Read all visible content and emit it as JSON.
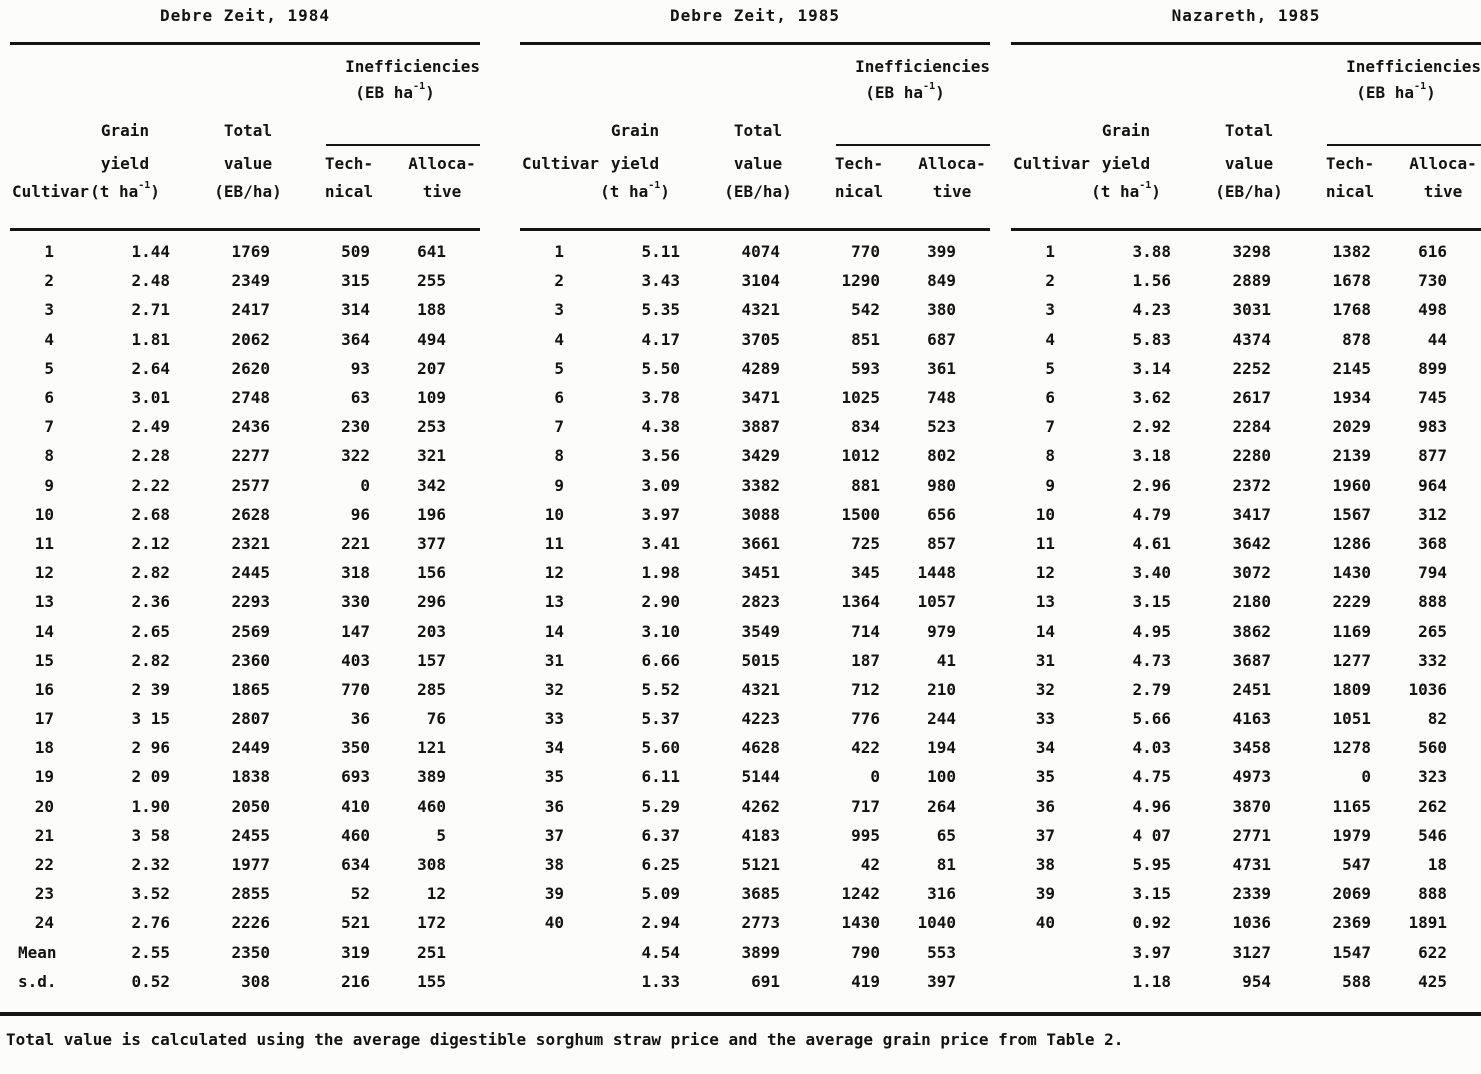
{
  "table": {
    "footnote": "Total value is calculated using the average digestible sorghum straw price and the average grain price from Table 2.",
    "columns": {
      "cultivar": "Cultivar",
      "grain_line1": "Grain",
      "grain_line2": "yield",
      "grain_unit_pre": "(t ha",
      "value_line1": "Total",
      "value_line2": "value",
      "value_unit": "(EB/ha)",
      "ineff_title": "Inefficiencies",
      "ineff_unit_pre": "(EB ha",
      "unit_sup": "-1",
      "unit_close": ")",
      "tech_line1": "Tech-",
      "tech_line2": "nical",
      "alloc_line1": "Alloca-",
      "alloc_line2": "tive"
    },
    "panels": [
      {
        "title": "Debre Zeit, 1984",
        "rows": [
          [
            "1",
            "1.44",
            "1769",
            "509",
            "641"
          ],
          [
            "2",
            "2.48",
            "2349",
            "315",
            "255"
          ],
          [
            "3",
            "2.71",
            "2417",
            "314",
            "188"
          ],
          [
            "4",
            "1.81",
            "2062",
            "364",
            "494"
          ],
          [
            "5",
            "2.64",
            "2620",
            "93",
            "207"
          ],
          [
            "6",
            "3.01",
            "2748",
            "63",
            "109"
          ],
          [
            "7",
            "2.49",
            "2436",
            "230",
            "253"
          ],
          [
            "8",
            "2.28",
            "2277",
            "322",
            "321"
          ],
          [
            "9",
            "2.22",
            "2577",
            "0",
            "342"
          ],
          [
            "10",
            "2.68",
            "2628",
            "96",
            "196"
          ],
          [
            "11",
            "2.12",
            "2321",
            "221",
            "377"
          ],
          [
            "12",
            "2.82",
            "2445",
            "318",
            "156"
          ],
          [
            "13",
            "2.36",
            "2293",
            "330",
            "296"
          ],
          [
            "14",
            "2.65",
            "2569",
            "147",
            "203"
          ],
          [
            "15",
            "2.82",
            "2360",
            "403",
            "157"
          ],
          [
            "16",
            "2 39",
            "1865",
            "770",
            "285"
          ],
          [
            "17",
            "3 15",
            "2807",
            "36",
            "76"
          ],
          [
            "18",
            "2 96",
            "2449",
            "350",
            "121"
          ],
          [
            "19",
            "2 09",
            "1838",
            "693",
            "389"
          ],
          [
            "20",
            "1.90",
            "2050",
            "410",
            "460"
          ],
          [
            "21",
            "3 58",
            "2455",
            "460",
            "5"
          ],
          [
            "22",
            "2.32",
            "1977",
            "634",
            "308"
          ],
          [
            "23",
            "3.52",
            "2855",
            "52",
            "12"
          ],
          [
            "24",
            "2.76",
            "2226",
            "521",
            "172"
          ],
          [
            "Mean",
            "2.55",
            "2350",
            "319",
            "251"
          ],
          [
            "s.d.",
            "0.52",
            "308",
            "216",
            "155"
          ]
        ]
      },
      {
        "title": "Debre Zeit, 1985",
        "rows": [
          [
            "1",
            "5.11",
            "4074",
            "770",
            "399"
          ],
          [
            "2",
            "3.43",
            "3104",
            "1290",
            "849"
          ],
          [
            "3",
            "5.35",
            "4321",
            "542",
            "380"
          ],
          [
            "4",
            "4.17",
            "3705",
            "851",
            "687"
          ],
          [
            "5",
            "5.50",
            "4289",
            "593",
            "361"
          ],
          [
            "6",
            "3.78",
            "3471",
            "1025",
            "748"
          ],
          [
            "7",
            "4.38",
            "3887",
            "834",
            "523"
          ],
          [
            "8",
            "3.56",
            "3429",
            "1012",
            "802"
          ],
          [
            "9",
            "3.09",
            "3382",
            "881",
            "980"
          ],
          [
            "10",
            "3.97",
            "3088",
            "1500",
            "656"
          ],
          [
            "11",
            "3.41",
            "3661",
            "725",
            "857"
          ],
          [
            "12",
            "1.98",
            "3451",
            "345",
            "1448"
          ],
          [
            "13",
            "2.90",
            "2823",
            "1364",
            "1057"
          ],
          [
            "14",
            "3.10",
            "3549",
            "714",
            "979"
          ],
          [
            "31",
            "6.66",
            "5015",
            "187",
            "41"
          ],
          [
            "32",
            "5.52",
            "4321",
            "712",
            "210"
          ],
          [
            "33",
            "5.37",
            "4223",
            "776",
            "244"
          ],
          [
            "34",
            "5.60",
            "4628",
            "422",
            "194"
          ],
          [
            "35",
            "6.11",
            "5144",
            "0",
            "100"
          ],
          [
            "36",
            "5.29",
            "4262",
            "717",
            "264"
          ],
          [
            "37",
            "6.37",
            "4183",
            "995",
            "65"
          ],
          [
            "38",
            "6.25",
            "5121",
            "42",
            "81"
          ],
          [
            "39",
            "5.09",
            "3685",
            "1242",
            "316"
          ],
          [
            "40",
            "2.94",
            "2773",
            "1430",
            "1040"
          ],
          [
            "",
            "4.54",
            "3899",
            "790",
            "553"
          ],
          [
            "",
            "1.33",
            "691",
            "419",
            "397"
          ]
        ]
      },
      {
        "title": "Nazareth, 1985",
        "rows": [
          [
            "1",
            "3.88",
            "3298",
            "1382",
            "616"
          ],
          [
            "2",
            "1.56",
            "2889",
            "1678",
            "730"
          ],
          [
            "3",
            "4.23",
            "3031",
            "1768",
            "498"
          ],
          [
            "4",
            "5.83",
            "4374",
            "878",
            "44"
          ],
          [
            "5",
            "3.14",
            "2252",
            "2145",
            "899"
          ],
          [
            "6",
            "3.62",
            "2617",
            "1934",
            "745"
          ],
          [
            "7",
            "2.92",
            "2284",
            "2029",
            "983"
          ],
          [
            "8",
            "3.18",
            "2280",
            "2139",
            "877"
          ],
          [
            "9",
            "2.96",
            "2372",
            "1960",
            "964"
          ],
          [
            "10",
            "4.79",
            "3417",
            "1567",
            "312"
          ],
          [
            "11",
            "4.61",
            "3642",
            "1286",
            "368"
          ],
          [
            "12",
            "3.40",
            "3072",
            "1430",
            "794"
          ],
          [
            "13",
            "3.15",
            "2180",
            "2229",
            "888"
          ],
          [
            "14",
            "4.95",
            "3862",
            "1169",
            "265"
          ],
          [
            "31",
            "4.73",
            "3687",
            "1277",
            "332"
          ],
          [
            "32",
            "2.79",
            "2451",
            "1809",
            "1036"
          ],
          [
            "33",
            "5.66",
            "4163",
            "1051",
            "82"
          ],
          [
            "34",
            "4.03",
            "3458",
            "1278",
            "560"
          ],
          [
            "35",
            "4.75",
            "4973",
            "0",
            "323"
          ],
          [
            "36",
            "4.96",
            "3870",
            "1165",
            "262"
          ],
          [
            "37",
            "4 07",
            "2771",
            "1979",
            "546"
          ],
          [
            "38",
            "5.95",
            "4731",
            "547",
            "18"
          ],
          [
            "39",
            "3.15",
            "2339",
            "2069",
            "888"
          ],
          [
            "40",
            "0.92",
            "1036",
            "2369",
            "1891"
          ],
          [
            "",
            "3.97",
            "3127",
            "1547",
            "622"
          ],
          [
            "",
            "1.18",
            "954",
            "588",
            "425"
          ]
        ]
      }
    ]
  }
}
